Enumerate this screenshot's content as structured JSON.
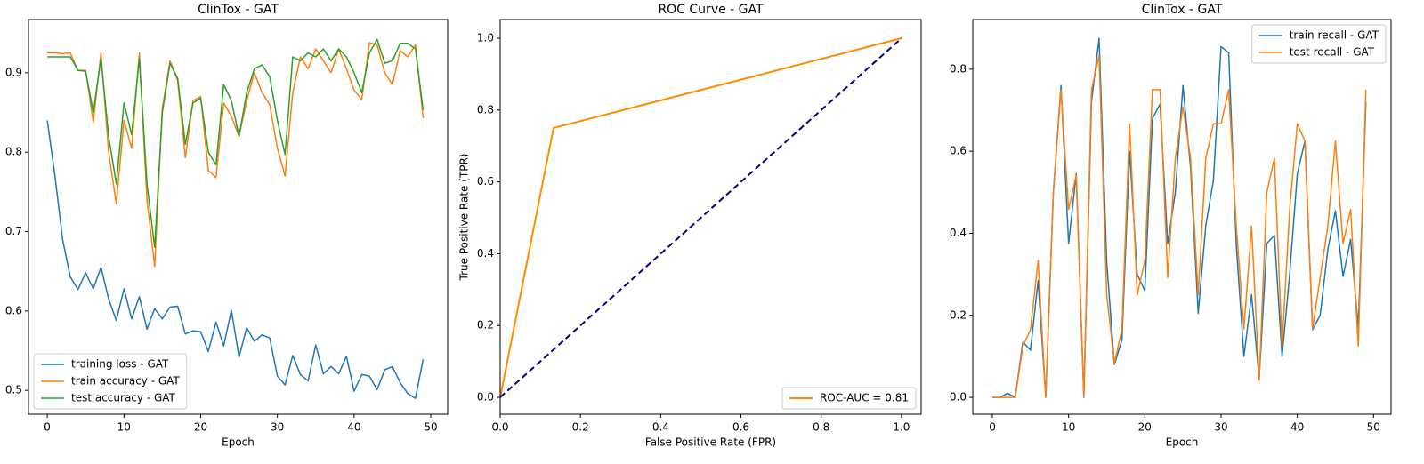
{
  "chart_data": [
    {
      "type": "line",
      "title": "ClinTox - GAT",
      "x_label": "Epoch",
      "x": [
        0,
        1,
        2,
        3,
        4,
        5,
        6,
        7,
        8,
        9,
        10,
        11,
        12,
        13,
        14,
        15,
        16,
        17,
        18,
        19,
        20,
        21,
        22,
        23,
        24,
        25,
        26,
        27,
        28,
        29,
        30,
        31,
        32,
        33,
        34,
        35,
        36,
        37,
        38,
        39,
        40,
        41,
        42,
        43,
        44,
        45,
        46,
        47,
        48,
        49
      ],
      "series": [
        {
          "name": "training loss - GAT",
          "color": "#1f77b4",
          "values": [
            0.84,
            0.77,
            0.69,
            0.643,
            0.627,
            0.648,
            0.628,
            0.655,
            0.615,
            0.588,
            0.628,
            0.59,
            0.618,
            0.577,
            0.603,
            0.59,
            0.605,
            0.606,
            0.571,
            0.575,
            0.574,
            0.549,
            0.586,
            0.556,
            0.601,
            0.542,
            0.579,
            0.562,
            0.57,
            0.566,
            0.518,
            0.507,
            0.544,
            0.52,
            0.512,
            0.557,
            0.521,
            0.53,
            0.521,
            0.543,
            0.499,
            0.52,
            0.518,
            0.501,
            0.526,
            0.53,
            0.51,
            0.496,
            0.49,
            0.539
          ]
        },
        {
          "name": "train accuracy - GAT",
          "color": "#ff7f0e",
          "values": [
            0.925,
            0.925,
            0.924,
            0.925,
            0.903,
            0.903,
            0.838,
            0.925,
            0.8,
            0.735,
            0.84,
            0.805,
            0.925,
            0.74,
            0.656,
            0.855,
            0.915,
            0.89,
            0.793,
            0.865,
            0.87,
            0.777,
            0.768,
            0.862,
            0.845,
            0.82,
            0.865,
            0.9,
            0.875,
            0.86,
            0.805,
            0.77,
            0.875,
            0.92,
            0.905,
            0.93,
            0.915,
            0.9,
            0.93,
            0.905,
            0.878,
            0.866,
            0.938,
            0.935,
            0.9,
            0.885,
            0.928,
            0.92,
            0.935,
            0.843
          ]
        },
        {
          "name": "test accuracy - GAT",
          "color": "#2ca02c",
          "values": [
            0.92,
            0.92,
            0.92,
            0.92,
            0.903,
            0.902,
            0.85,
            0.918,
            0.82,
            0.76,
            0.862,
            0.822,
            0.918,
            0.76,
            0.68,
            0.85,
            0.912,
            0.893,
            0.81,
            0.862,
            0.868,
            0.8,
            0.784,
            0.885,
            0.865,
            0.82,
            0.875,
            0.905,
            0.91,
            0.895,
            0.84,
            0.797,
            0.92,
            0.915,
            0.925,
            0.92,
            0.93,
            0.915,
            0.93,
            0.92,
            0.9,
            0.875,
            0.925,
            0.942,
            0.912,
            0.915,
            0.937,
            0.937,
            0.93,
            0.853
          ]
        }
      ],
      "xlim": [
        -2.45,
        52.2
      ],
      "xticks": [
        0,
        10,
        20,
        30,
        40,
        50
      ],
      "ylim": [
        0.47,
        0.967
      ],
      "yticks": [
        0.5,
        0.6,
        0.7,
        0.8,
        0.9
      ],
      "legend": "lower left"
    },
    {
      "type": "line",
      "title": "ROC Curve - GAT",
      "x_label": "False Positive Rate (FPR)",
      "y_label": "True Positive Rate (TPR)",
      "series": [
        {
          "name": "ROC-AUC = 0.81",
          "color": "#ff8c00",
          "linewidth": 2,
          "x": [
            0,
            0.133,
            1
          ],
          "values": [
            0,
            0.75,
            1
          ]
        },
        {
          "color": "#000080",
          "linewidth": 2,
          "linestyle": "dashed",
          "x": [
            0,
            1
          ],
          "values": [
            0,
            1
          ]
        }
      ],
      "xlim": [
        0,
        1.049
      ],
      "xticks": [
        {
          "value": 0,
          "label": "0.0"
        },
        0.2,
        0.4,
        0.6,
        0.8,
        {
          "value": 1,
          "label": "1.0"
        }
      ],
      "ylim": [
        -0.047,
        1.052
      ],
      "yticks": [
        {
          "value": 0,
          "label": "0.0"
        },
        0.2,
        0.4,
        0.6,
        0.8,
        {
          "value": 1,
          "label": "1.0"
        }
      ],
      "legend": "lower right"
    },
    {
      "type": "line",
      "title": "ClinTox - GAT",
      "x_label": "Epoch",
      "x": [
        0,
        1,
        2,
        3,
        4,
        5,
        6,
        7,
        8,
        9,
        10,
        11,
        12,
        13,
        14,
        15,
        16,
        17,
        18,
        19,
        20,
        21,
        22,
        23,
        24,
        25,
        26,
        27,
        28,
        29,
        30,
        31,
        32,
        33,
        34,
        35,
        36,
        37,
        38,
        39,
        40,
        41,
        42,
        43,
        44,
        45,
        46,
        47,
        48,
        49
      ],
      "series": [
        {
          "name": "train recall - GAT",
          "color": "#1f77b4",
          "values": [
            0,
            0,
            0.01,
            0,
            0.135,
            0.115,
            0.285,
            0,
            0.5,
            0.76,
            0.375,
            0.545,
            0,
            0.72,
            0.875,
            0.33,
            0.08,
            0.14,
            0.6,
            0.3,
            0.26,
            0.68,
            0.715,
            0.375,
            0.5,
            0.76,
            0.56,
            0.205,
            0.42,
            0.53,
            0.855,
            0.84,
            0.37,
            0.1,
            0.25,
            0.045,
            0.375,
            0.395,
            0.1,
            0.3,
            0.545,
            0.625,
            0.165,
            0.2,
            0.36,
            0.455,
            0.295,
            0.385,
            0.17,
            0.72
          ]
        },
        {
          "name": "test recall - GAT",
          "color": "#ff7f0e",
          "values": [
            0,
            0,
            0,
            0,
            0.125,
            0.165,
            0.333,
            0,
            0.5,
            0.75,
            0.458,
            0.542,
            0,
            0.75,
            0.833,
            0.25,
            0.083,
            0.167,
            0.667,
            0.25,
            0.333,
            0.75,
            0.75,
            0.292,
            0.583,
            0.708,
            0.583,
            0.25,
            0.583,
            0.667,
            0.667,
            0.75,
            0.417,
            0.167,
            0.417,
            0.042,
            0.5,
            0.583,
            0.125,
            0.458,
            0.667,
            0.625,
            0.167,
            0.292,
            0.417,
            0.625,
            0.375,
            0.458,
            0.125,
            0.75
          ]
        }
      ],
      "xlim": [
        -2.57,
        52.3
      ],
      "xticks": [
        0,
        10,
        20,
        30,
        40,
        50
      ],
      "ylim": [
        -0.041,
        0.921
      ],
      "yticks": [
        {
          "value": 0,
          "label": "0.0"
        },
        0.2,
        0.4,
        0.6,
        0.8
      ],
      "legend": "upper right"
    }
  ]
}
